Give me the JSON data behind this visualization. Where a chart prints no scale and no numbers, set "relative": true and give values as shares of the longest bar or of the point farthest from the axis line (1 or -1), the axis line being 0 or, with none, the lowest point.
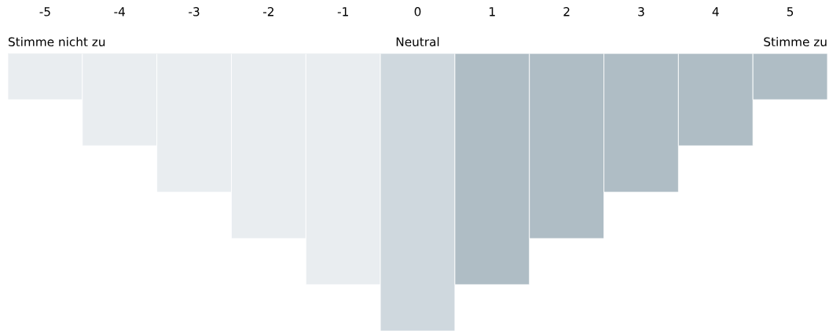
{
  "chart_data": {
    "type": "bar",
    "relative": true,
    "categories": [
      "-5",
      "-4",
      "-3",
      "-2",
      "-1",
      "0",
      "1",
      "2",
      "3",
      "4",
      "5"
    ],
    "values": [
      -0.167,
      -0.333,
      -0.5,
      -0.667,
      -0.833,
      -1,
      -0.833,
      -0.667,
      -0.5,
      -0.333,
      -0.167
    ],
    "colors": [
      "#e9edf0",
      "#e9edf0",
      "#e9edf0",
      "#e9edf0",
      "#e9edf0",
      "#cfd8de",
      "#afbdc5",
      "#afbdc5",
      "#afbdc5",
      "#afbdc5",
      "#afbdc5"
    ],
    "annotations": [
      "Stimme nicht zu",
      "Neutral",
      "Stimme zu"
    ],
    "grid": false,
    "legend": false
  }
}
